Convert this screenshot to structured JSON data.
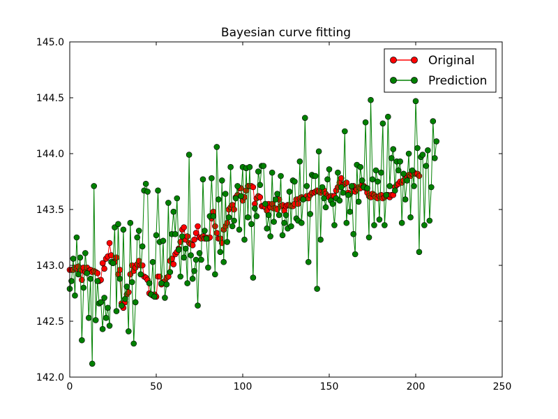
{
  "chart_data": {
    "type": "line",
    "title": "Bayesian curve fitting",
    "xlabel": "",
    "ylabel": "",
    "xlim": [
      0,
      250
    ],
    "ylim": [
      142.0,
      145.0
    ],
    "xticks": [
      0,
      50,
      100,
      150,
      200,
      250
    ],
    "yticks": [
      142.0,
      142.5,
      143.0,
      143.5,
      144.0,
      144.5,
      145.0
    ],
    "grid": false,
    "legend_position": "top-right",
    "series": [
      {
        "name": "Original",
        "color": "#ff0000",
        "marker": "circle",
        "values": [
          142.96,
          142.96,
          142.96,
          142.98,
          142.97,
          142.99,
          142.95,
          142.87,
          142.98,
          142.94,
          142.98,
          142.95,
          142.96,
          142.94,
          142.95,
          142.94,
          142.93,
          142.86,
          142.87,
          143.02,
          142.97,
          143.06,
          143.08,
          143.2,
          143.09,
          143.03,
          143.03,
          143.07,
          142.92,
          142.96,
          142.66,
          142.62,
          142.67,
          142.74,
          142.76,
          142.92,
          143.0,
          142.95,
          142.98,
          143.01,
          143.04,
          143.0,
          143.0,
          142.9,
          142.89,
          142.87,
          142.75,
          142.74,
          142.73,
          142.74,
          142.72,
          142.9,
          142.9,
          142.83,
          142.85,
          142.86,
          142.89,
          142.9,
          143.04,
          143.06,
          143.01,
          143.1,
          143.12,
          143.15,
          143.21,
          143.32,
          143.34,
          143.23,
          143.26,
          143.2,
          143.19,
          143.18,
          143.23,
          143.29,
          143.35,
          143.25,
          143.24,
          143.26,
          143.24,
          143.25,
          143.24,
          143.25,
          143.42,
          143.48,
          143.35,
          143.29,
          143.24,
          143.24,
          143.2,
          143.32,
          143.35,
          143.38,
          143.5,
          143.52,
          143.54,
          143.5,
          143.61,
          143.63,
          143.69,
          143.69,
          143.58,
          143.61,
          143.67,
          143.71,
          143.71,
          143.71,
          143.7,
          143.55,
          143.6,
          143.62,
          143.61,
          143.53,
          143.53,
          143.52,
          143.49,
          143.55,
          143.52,
          143.55,
          143.51,
          143.51,
          143.5,
          143.59,
          143.53,
          143.54,
          143.49,
          143.53,
          143.54,
          143.54,
          143.53,
          143.53,
          143.55,
          143.59,
          143.55,
          143.6,
          143.61,
          143.6,
          143.6,
          143.62,
          143.6,
          143.63,
          143.65,
          143.65,
          143.66,
          143.67,
          143.66,
          143.65,
          143.67,
          143.67,
          143.64,
          143.62,
          143.61,
          143.62,
          143.62,
          143.62,
          143.67,
          143.7,
          143.74,
          143.78,
          143.72,
          143.73,
          143.74,
          143.65,
          143.64,
          143.7,
          143.71,
          143.66,
          143.68,
          143.7,
          143.69,
          143.72,
          143.71,
          143.69,
          143.65,
          143.62,
          143.61,
          143.64,
          143.63,
          143.61,
          143.6,
          143.62,
          143.63,
          143.6,
          143.61,
          143.62,
          143.63,
          143.61,
          143.63,
          143.63,
          143.7,
          143.72,
          143.73,
          143.75,
          143.74,
          143.76,
          143.79,
          143.8,
          143.81,
          143.8,
          143.82,
          143.83,
          143.82,
          143.82,
          143.8
        ]
      },
      {
        "name": "Prediction",
        "color": "#008000",
        "marker": "circle",
        "values": [
          142.79,
          142.86,
          143.06,
          142.73,
          143.25,
          142.92,
          143.07,
          142.33,
          142.8,
          143.11,
          142.93,
          142.53,
          142.88,
          142.12,
          143.71,
          142.51,
          142.86,
          142.66,
          142.67,
          142.43,
          142.71,
          142.53,
          142.62,
          142.46,
          143.03,
          143.02,
          143.34,
          142.59,
          143.37,
          142.88,
          142.64,
          143.32,
          142.7,
          142.81,
          142.41,
          143.38,
          142.85,
          142.3,
          142.67,
          143.25,
          143.31,
          142.92,
          143.17,
          143.67,
          143.73,
          143.66,
          142.84,
          142.74,
          143.03,
          142.72,
          143.27,
          143.67,
          143.21,
          142.84,
          143.22,
          142.71,
          142.83,
          143.56,
          142.94,
          143.28,
          143.48,
          143.28,
          143.6,
          143.14,
          142.9,
          143.26,
          143.07,
          143.15,
          142.84,
          143.99,
          143.09,
          142.88,
          142.95,
          143.05,
          142.64,
          143.11,
          143.05,
          143.77,
          143.31,
          143.24,
          142.98,
          143.44,
          143.78,
          143.44,
          142.92,
          144.06,
          143.59,
          143.12,
          143.76,
          143.03,
          143.64,
          143.21,
          143.43,
          143.88,
          143.35,
          143.4,
          143.6,
          143.71,
          143.32,
          143.62,
          143.88,
          143.23,
          143.87,
          143.43,
          143.88,
          143.37,
          142.89,
          143.51,
          143.44,
          143.84,
          143.72,
          143.89,
          143.89,
          143.55,
          143.33,
          143.45,
          143.26,
          143.83,
          143.39,
          143.59,
          143.64,
          143.45,
          143.8,
          143.27,
          143.38,
          143.45,
          143.33,
          143.66,
          143.35,
          143.76,
          143.75,
          143.42,
          143.4,
          143.93,
          143.38,
          143.59,
          144.32,
          143.71,
          143.03,
          143.46,
          143.81,
          143.8,
          143.8,
          142.79,
          144.02,
          143.23,
          143.7,
          143.6,
          143.52,
          143.77,
          143.86,
          143.58,
          143.55,
          143.36,
          143.6,
          143.83,
          143.58,
          143.7,
          143.65,
          144.2,
          143.38,
          143.63,
          143.48,
          143.71,
          143.28,
          143.1,
          143.9,
          143.57,
          143.88,
          143.76,
          143.7,
          144.28,
          143.69,
          143.25,
          144.48,
          143.77,
          143.36,
          143.85,
          143.75,
          143.41,
          143.83,
          144.27,
          143.36,
          143.63,
          144.33,
          143.71,
          143.96,
          144.04,
          143.67,
          143.93,
          143.85,
          143.93,
          143.38,
          143.82,
          143.59,
          143.76,
          144.0,
          143.43,
          143.85,
          143.71,
          144.47,
          144.05,
          143.12,
          143.97,
          143.99,
          143.36,
          143.89,
          144.03,
          143.4,
          143.7,
          144.29,
          143.96,
          144.11
        ]
      }
    ]
  }
}
